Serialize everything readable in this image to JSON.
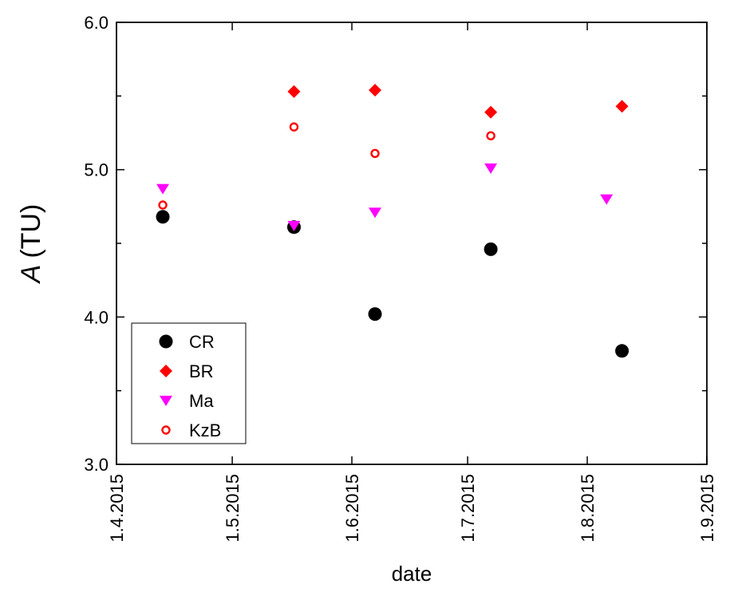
{
  "chart_data": {
    "type": "scatter",
    "title": "",
    "xlabel": "date",
    "ylabel_symbol": "A",
    "ylabel_unit": "(TU)",
    "x_type": "date",
    "xlim": [
      "2015-04-01",
      "2015-09-01"
    ],
    "ylim": [
      3.0,
      6.0
    ],
    "x_ticks": [
      "2015-04-01",
      "2015-05-01",
      "2015-06-01",
      "2015-07-01",
      "2015-08-01",
      "2015-09-01"
    ],
    "x_tick_labels": [
      "1.4.2015",
      "1.5.2015",
      "1.6.2015",
      "1.7.2015",
      "1.8.2015",
      "1.9.2015"
    ],
    "y_ticks": [
      3.0,
      4.0,
      5.0,
      6.0
    ],
    "y_tick_labels": [
      "3.0",
      "4.0",
      "5.0",
      "6.0"
    ],
    "grid": false,
    "legend_position": "bottom-left",
    "series": [
      {
        "name": "CR",
        "marker": "filled-circle",
        "color": "#000000",
        "points": [
          {
            "x": "2015-04-13",
            "y": 4.68
          },
          {
            "x": "2015-05-17",
            "y": 4.61
          },
          {
            "x": "2015-06-07",
            "y": 4.02
          },
          {
            "x": "2015-07-07",
            "y": 4.46
          },
          {
            "x": "2015-08-10",
            "y": 3.77
          }
        ]
      },
      {
        "name": "BR",
        "marker": "filled-diamond",
        "color": "#ff0000",
        "points": [
          {
            "x": "2015-05-17",
            "y": 5.53
          },
          {
            "x": "2015-06-07",
            "y": 5.54
          },
          {
            "x": "2015-07-07",
            "y": 5.39
          },
          {
            "x": "2015-08-10",
            "y": 5.43
          }
        ]
      },
      {
        "name": "Ma",
        "marker": "filled-down-triangle",
        "color": "#ff00ff",
        "points": [
          {
            "x": "2015-04-13",
            "y": 4.87
          },
          {
            "x": "2015-05-17",
            "y": 4.62
          },
          {
            "x": "2015-06-07",
            "y": 4.71
          },
          {
            "x": "2015-07-07",
            "y": 5.01
          },
          {
            "x": "2015-08-06",
            "y": 4.8
          }
        ]
      },
      {
        "name": "KzB",
        "marker": "open-circle",
        "color": "#ff0000",
        "points": [
          {
            "x": "2015-04-13",
            "y": 4.76
          },
          {
            "x": "2015-05-17",
            "y": 5.29
          },
          {
            "x": "2015-06-07",
            "y": 5.11
          },
          {
            "x": "2015-07-07",
            "y": 5.23
          }
        ]
      }
    ]
  }
}
